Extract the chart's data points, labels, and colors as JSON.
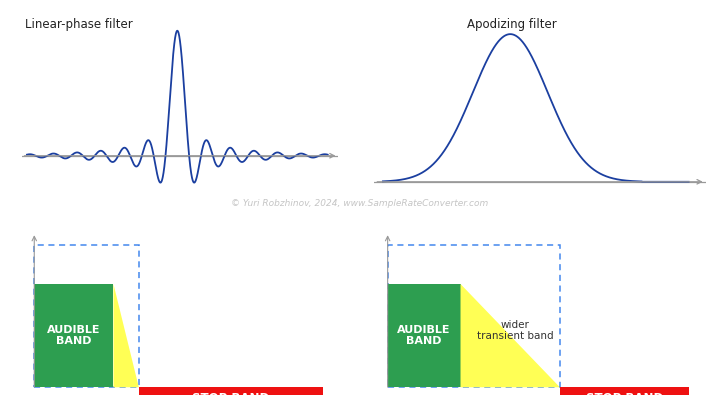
{
  "bg_color": "#ffffff",
  "line_color": "#1b3fa0",
  "axis_color": "#999999",
  "title_left": "Linear-phase filter",
  "title_right": "Apodizing filter",
  "watermark": "© Yuri Robzhinov, 2024, www.SampleRateConverter.com",
  "green_color": "#2d9e50",
  "yellow_color": "#ffff55",
  "red_color": "#ee1111",
  "dashed_color": "#4488ee",
  "audible_label": "AUDIBLE\nBAND",
  "stop_label": "STOP BAND",
  "transient_label": "wider\ntransient band"
}
